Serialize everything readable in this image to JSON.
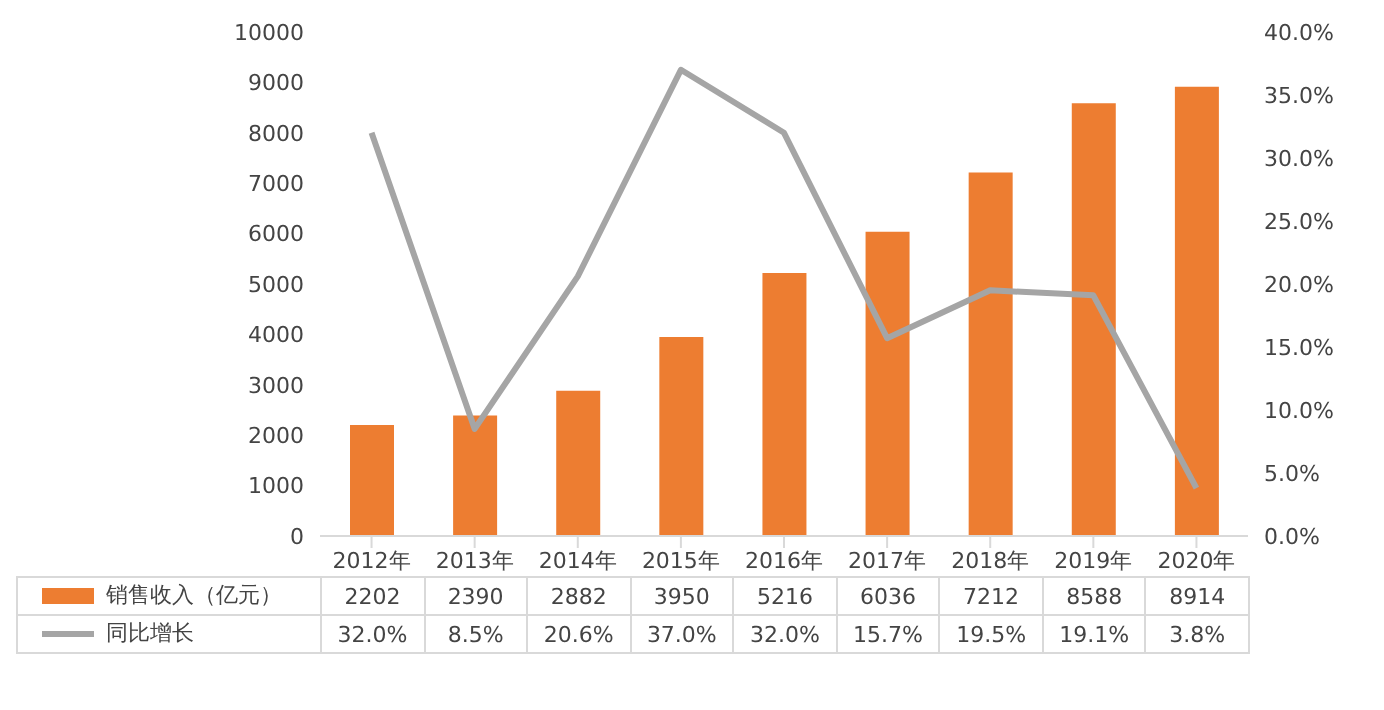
{
  "chart_data": {
    "type": "bar",
    "categories": [
      "2012年",
      "2013年",
      "2014年",
      "2015年",
      "2016年",
      "2017年",
      "2018年",
      "2019年",
      "2020年"
    ],
    "series": [
      {
        "name": "销售收入（亿元）",
        "color": "#ed7d31",
        "values": [
          2202,
          2390,
          2882,
          3950,
          5216,
          6036,
          7212,
          8588,
          8914
        ],
        "value_labels": [
          "2202",
          "2390",
          "2882",
          "3950",
          "5216",
          "6036",
          "7212",
          "8588",
          "8914"
        ]
      },
      {
        "name": "同比增长",
        "type": "line",
        "axis": "y2",
        "color": "#a5a5a5",
        "values": [
          32.0,
          8.5,
          20.6,
          37.0,
          32.0,
          15.7,
          19.5,
          19.1,
          3.8
        ],
        "value_labels": [
          "32.0%",
          "8.5%",
          "20.6%",
          "37.0%",
          "32.0%",
          "15.7%",
          "19.5%",
          "19.1%",
          "3.8%"
        ]
      }
    ],
    "ylim": [
      0,
      10000
    ],
    "yticks": [
      0,
      1000,
      2000,
      3000,
      4000,
      5000,
      6000,
      7000,
      8000,
      9000,
      10000
    ],
    "y2lim": [
      0,
      40
    ],
    "y2ticks": [
      {
        "value": 0,
        "label": "0.0%"
      },
      {
        "value": 5,
        "label": "5.0%"
      },
      {
        "value": 10,
        "label": "10.0%"
      },
      {
        "value": 15,
        "label": "15.0%"
      },
      {
        "value": 20,
        "label": "20.0%"
      },
      {
        "value": 25,
        "label": "25.0%"
      },
      {
        "value": 30,
        "label": "30.0%"
      },
      {
        "value": 35,
        "label": "35.0%"
      },
      {
        "value": 40,
        "label": "40.0%"
      }
    ],
    "legend": "bottom",
    "marker": "none",
    "line_style": "solid"
  }
}
